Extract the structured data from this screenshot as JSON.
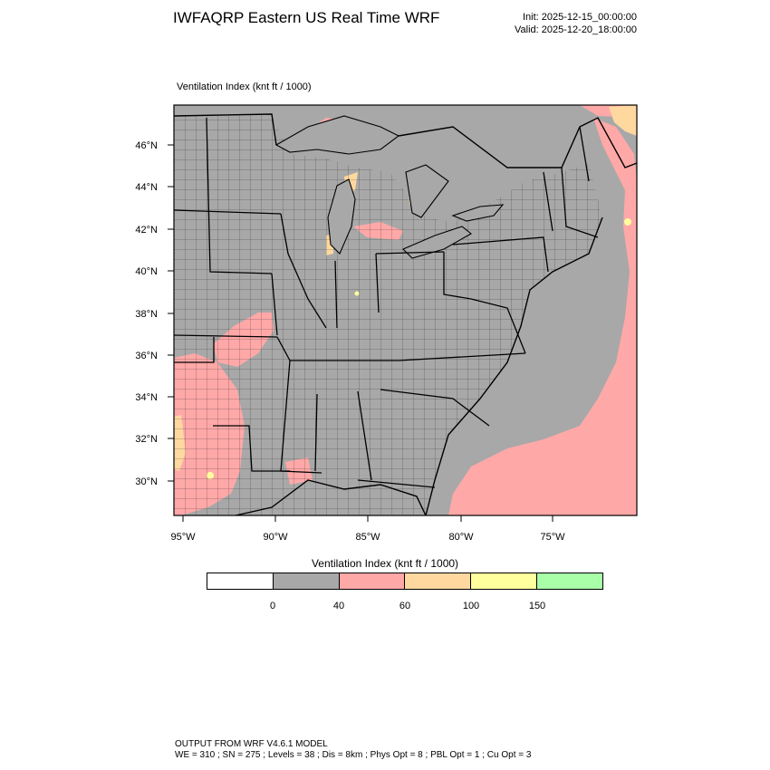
{
  "header": {
    "title": "IWFAQRP Eastern US Real Time WRF",
    "init": "Init: 2025-12-15_00:00:00",
    "valid": "Valid: 2025-12-20_18:00:00"
  },
  "plot": {
    "label": "Ventilation Index   (knt ft / 1000)",
    "lat_ticks": [
      "46°N",
      "44°N",
      "42°N",
      "40°N",
      "38°N",
      "36°N",
      "34°N",
      "32°N",
      "30°N"
    ],
    "lon_ticks": [
      "95°W",
      "90°W",
      "85°W",
      "80°W",
      "75°W"
    ]
  },
  "colorbar": {
    "title": "Ventilation Index  (knt ft / 1000)",
    "colors": [
      "#ffffff",
      "#a8a8a8",
      "#ffa8a8",
      "#ffd8a0",
      "#ffff9e",
      "#a8ffa8"
    ],
    "labels": [
      "0",
      "40",
      "60",
      "100",
      "150"
    ]
  },
  "footer": {
    "line1": "OUTPUT FROM WRF V4.6.1 MODEL",
    "line2": "WE = 310 ; SN = 275 ; Levels = 38 ; Dis = 8km ; Phys Opt = 8 ; PBL Opt = 1 ; Cu Opt = 3"
  }
}
